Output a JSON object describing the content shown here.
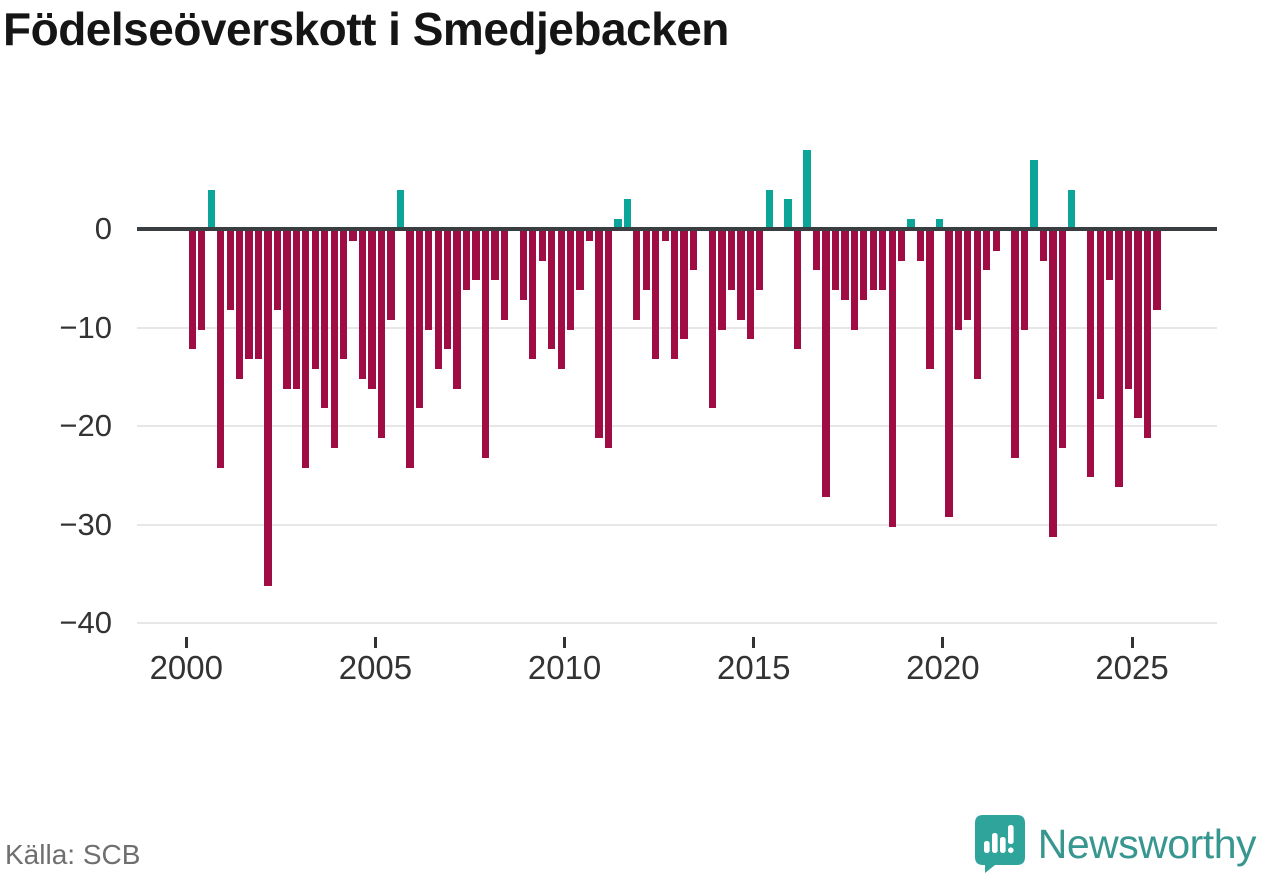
{
  "title": "Födelseöverskott i Smedjebacken",
  "footer": {
    "source": "Källa: SCB",
    "brand": "Newsworthy"
  },
  "colors": {
    "negative": "#a00d45",
    "positive": "#0ca59a",
    "zero_axis": "#3b3e40",
    "grid": "#e7e7e7",
    "tick_label": "#333333",
    "source_text": "#6f6f6f",
    "brand_teal": "#37968f"
  },
  "chart_data": {
    "type": "bar",
    "title": "Födelseöverskott i Smedjebacken",
    "xlabel": "",
    "ylabel": "",
    "ylim": [
      -42,
      9
    ],
    "grid": "horizontal",
    "legend": "none",
    "x_tick_years": [
      2000,
      2005,
      2010,
      2015,
      2020,
      2025
    ],
    "y_ticks": [
      {
        "label": "0",
        "value": 0
      },
      {
        "label": "−10",
        "value": -10
      },
      {
        "label": "−20",
        "value": -20
      },
      {
        "label": "−30",
        "value": -30
      },
      {
        "label": "−40",
        "value": -40
      }
    ],
    "quarters": [
      "2000 Q1",
      "2000 Q2",
      "2000 Q3",
      "2000 Q4",
      "2001 Q1",
      "2001 Q2",
      "2001 Q3",
      "2001 Q4",
      "2002 Q1",
      "2002 Q2",
      "2002 Q3",
      "2002 Q4",
      "2003 Q1",
      "2003 Q2",
      "2003 Q3",
      "2003 Q4",
      "2004 Q1",
      "2004 Q2",
      "2004 Q3",
      "2004 Q4",
      "2005 Q1",
      "2005 Q2",
      "2005 Q3",
      "2005 Q4",
      "2006 Q1",
      "2006 Q2",
      "2006 Q3",
      "2006 Q4",
      "2007 Q1",
      "2007 Q2",
      "2007 Q3",
      "2007 Q4",
      "2008 Q1",
      "2008 Q2",
      "2008 Q3",
      "2008 Q4",
      "2009 Q1",
      "2009 Q2",
      "2009 Q3",
      "2009 Q4",
      "2010 Q1",
      "2010 Q2",
      "2010 Q3",
      "2010 Q4",
      "2011 Q1",
      "2011 Q2",
      "2011 Q3",
      "2011 Q4",
      "2012 Q1",
      "2012 Q2",
      "2012 Q3",
      "2012 Q4",
      "2013 Q1",
      "2013 Q2",
      "2013 Q3",
      "2013 Q4",
      "2014 Q1",
      "2014 Q2",
      "2014 Q3",
      "2014 Q4",
      "2015 Q1",
      "2015 Q2",
      "2015 Q3",
      "2015 Q4",
      "2016 Q1",
      "2016 Q2",
      "2016 Q3",
      "2016 Q4",
      "2017 Q1",
      "2017 Q2",
      "2017 Q3",
      "2017 Q4",
      "2018 Q1",
      "2018 Q2",
      "2018 Q3",
      "2018 Q4",
      "2019 Q1",
      "2019 Q2",
      "2019 Q3",
      "2019 Q4",
      "2020 Q1",
      "2020 Q2",
      "2020 Q3",
      "2020 Q4",
      "2021 Q1",
      "2021 Q2",
      "2021 Q3",
      "2021 Q4",
      "2022 Q1",
      "2022 Q2",
      "2022 Q3",
      "2022 Q4",
      "2023 Q1",
      "2023 Q2",
      "2023 Q3",
      "2023 Q4",
      "2024 Q1",
      "2024 Q2",
      "2024 Q3",
      "2024 Q4",
      "2025 Q1",
      "2025 Q2",
      "2025 Q3"
    ],
    "values": [
      -12,
      -10,
      4,
      -24,
      -8,
      -15,
      -13,
      -13,
      -36,
      -8,
      -16,
      -16,
      -24,
      -14,
      -18,
      -22,
      -13,
      -1,
      -15,
      -16,
      -21,
      -9,
      4,
      -24,
      -18,
      -10,
      -14,
      -12,
      -16,
      -6,
      -5,
      -23,
      -5,
      -9,
      0,
      -7,
      -13,
      -3,
      -12,
      -14,
      -10,
      -6,
      -1,
      -21,
      -22,
      1,
      3,
      -9,
      -6,
      -13,
      -1,
      -13,
      -11,
      -4,
      0,
      -18,
      -10,
      -6,
      -9,
      -11,
      -6,
      4,
      0,
      3,
      -12,
      8,
      -4,
      -27,
      -6,
      -7,
      -10,
      -7,
      -6,
      -6,
      -30,
      -3,
      1,
      -3,
      -14,
      1,
      -29,
      -10,
      -9,
      -15,
      -4,
      -2,
      0,
      -23,
      -10,
      7,
      -3,
      -31,
      -22,
      4,
      0,
      -25,
      -17,
      -5,
      -26,
      -16,
      -19,
      -21,
      -8
    ]
  }
}
